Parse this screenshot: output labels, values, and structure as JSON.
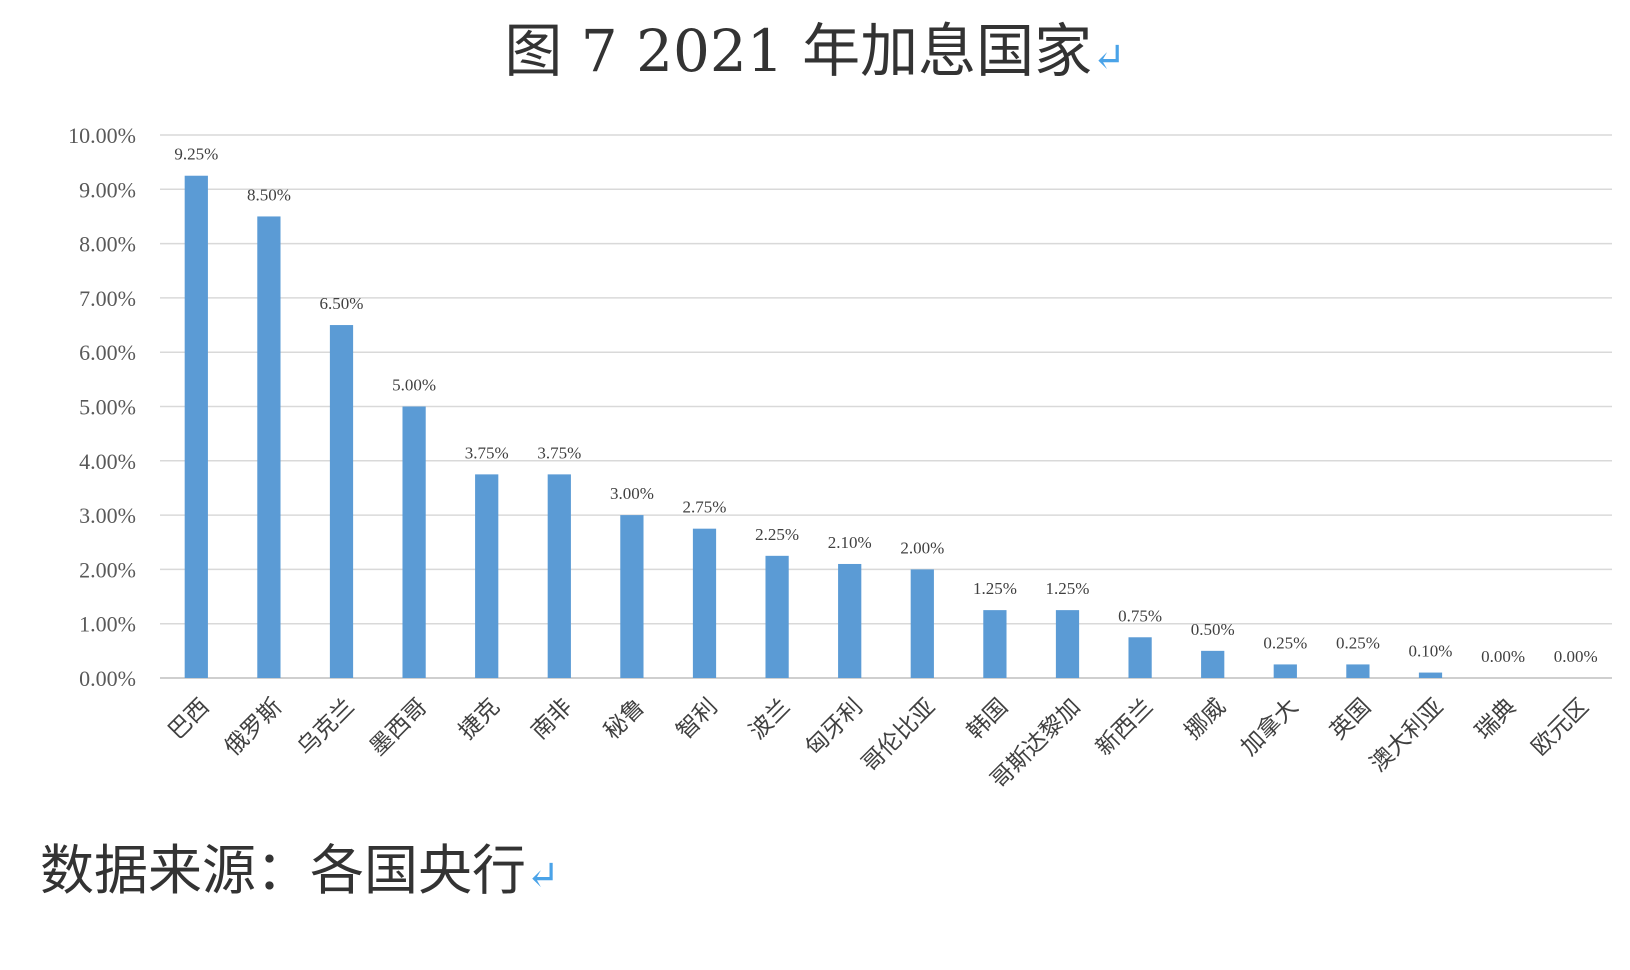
{
  "title": "图 7    2021 年加息国家",
  "return_mark": "↵",
  "source": "数据来源：各国央行",
  "colors": {
    "bar": "#5b9bd5",
    "grid": "#d9d9d9",
    "return_mark": "#4aa3e8"
  },
  "chart_data": {
    "type": "bar",
    "title": "图 7    2021 年加息国家",
    "xlabel": "",
    "ylabel": "",
    "ylim": [
      0,
      10
    ],
    "yticks": [
      "0.00%",
      "1.00%",
      "2.00%",
      "3.00%",
      "4.00%",
      "5.00%",
      "6.00%",
      "7.00%",
      "8.00%",
      "9.00%",
      "10.00%"
    ],
    "grid": true,
    "categories": [
      "巴西",
      "俄罗斯",
      "乌克兰",
      "墨西哥",
      "捷克",
      "南非",
      "秘鲁",
      "智利",
      "波兰",
      "匈牙利",
      "哥伦比亚",
      "韩国",
      "哥斯达黎加",
      "新西兰",
      "挪威",
      "加拿大",
      "英国",
      "澳大利亚",
      "瑞典",
      "欧元区"
    ],
    "values": [
      9.25,
      8.5,
      6.5,
      5.0,
      3.75,
      3.75,
      3.0,
      2.75,
      2.25,
      2.1,
      2.0,
      1.25,
      1.25,
      0.75,
      0.5,
      0.25,
      0.25,
      0.1,
      0.0,
      0.0
    ],
    "data_labels": [
      "9.25%",
      "8.50%",
      "6.50%",
      "5.00%",
      "3.75%",
      "3.75%",
      "3.00%",
      "2.75%",
      "2.25%",
      "2.10%",
      "2.00%",
      "1.25%",
      "1.25%",
      "0.75%",
      "0.50%",
      "0.25%",
      "0.25%",
      "0.10%",
      "0.00%",
      "0.00%"
    ]
  }
}
